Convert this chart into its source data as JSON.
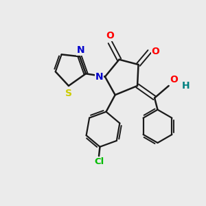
{
  "background_color": "#ebebeb",
  "bond_color": "#1a1a1a",
  "atom_colors": {
    "N": "#0000cc",
    "O": "#ff0000",
    "S": "#cccc00",
    "Cl": "#00bb00",
    "H": "#008080"
  },
  "figsize": [
    3.0,
    3.0
  ],
  "dpi": 100
}
